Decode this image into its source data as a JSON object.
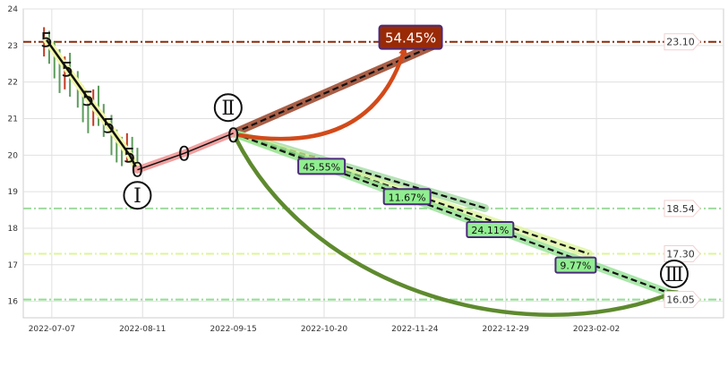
{
  "chart_data": {
    "type": "candlestick",
    "title": "",
    "xlabel": "",
    "ylabel": "",
    "x_range": [
      "2022-06-26",
      "2023-03-23"
    ],
    "ylim": [
      15.55,
      24.0
    ],
    "grid": true,
    "x_tick_labels": [
      "2022-07-07",
      "2022-08-11",
      "2022-09-15",
      "2022-10-20",
      "2022-11-24",
      "2022-12-29",
      "2023-02-02"
    ],
    "y_ticks": [
      16,
      17,
      18,
      19,
      20,
      21,
      22,
      23,
      24
    ],
    "candles": [
      {
        "date": "2022-07-04",
        "open": 22.9,
        "close": 23.2,
        "high": 23.5,
        "low": 22.7
      },
      {
        "date": "2022-07-06",
        "open": 23.1,
        "close": 22.8,
        "high": 23.4,
        "low": 22.5
      },
      {
        "date": "2022-07-08",
        "open": 22.8,
        "close": 22.5,
        "high": 23.1,
        "low": 22.1
      },
      {
        "date": "2022-07-10",
        "open": 22.5,
        "close": 22.1,
        "high": 22.9,
        "low": 21.7
      },
      {
        "date": "2022-07-12",
        "open": 22.1,
        "close": 22.4,
        "high": 22.7,
        "low": 21.8
      },
      {
        "date": "2022-07-14",
        "open": 22.4,
        "close": 22.0,
        "high": 22.8,
        "low": 21.6
      },
      {
        "date": "2022-07-17",
        "open": 22.0,
        "close": 21.6,
        "high": 22.3,
        "low": 21.3
      },
      {
        "date": "2022-07-19",
        "open": 21.6,
        "close": 21.2,
        "high": 21.9,
        "low": 20.9
      },
      {
        "date": "2022-07-21",
        "open": 21.2,
        "close": 21.0,
        "high": 21.5,
        "low": 20.6
      },
      {
        "date": "2022-07-23",
        "open": 21.0,
        "close": 21.4,
        "high": 21.8,
        "low": 20.8
      },
      {
        "date": "2022-07-25",
        "open": 21.4,
        "close": 21.1,
        "high": 21.9,
        "low": 20.8
      },
      {
        "date": "2022-07-27",
        "open": 21.1,
        "close": 20.8,
        "high": 21.4,
        "low": 20.5
      },
      {
        "date": "2022-07-30",
        "open": 20.8,
        "close": 20.4,
        "high": 21.1,
        "low": 20.0
      },
      {
        "date": "2022-08-01",
        "open": 20.4,
        "close": 20.1,
        "high": 20.7,
        "low": 19.8
      },
      {
        "date": "2022-08-03",
        "open": 20.1,
        "close": 19.9,
        "high": 20.5,
        "low": 19.7
      },
      {
        "date": "2022-08-05",
        "open": 19.9,
        "close": 20.2,
        "high": 20.6,
        "low": 19.8
      },
      {
        "date": "2022-08-07",
        "open": 20.2,
        "close": 19.9,
        "high": 20.5,
        "low": 19.7
      },
      {
        "date": "2022-08-09",
        "open": 19.9,
        "close": 19.7,
        "high": 20.2,
        "low": 19.5
      }
    ],
    "wave_path": [
      {
        "date": "2022-07-05",
        "value": 23.15
      },
      {
        "date": "2022-07-13",
        "value": 22.35
      },
      {
        "date": "2022-07-21",
        "value": 21.55
      },
      {
        "date": "2022-07-29",
        "value": 20.8
      },
      {
        "date": "2022-08-06",
        "value": 20.0
      },
      {
        "date": "2022-08-09",
        "value": 19.6
      }
    ],
    "wave_marks": [
      {
        "date": "2022-07-05",
        "value": 23.15,
        "label": "5"
      },
      {
        "date": "2022-07-13",
        "value": 22.35,
        "label": "5"
      },
      {
        "date": "2022-07-21",
        "value": 21.55,
        "label": "5"
      },
      {
        "date": "2022-07-29",
        "value": 20.8,
        "label": "5"
      },
      {
        "date": "2022-08-06",
        "value": 20.0,
        "label": "5"
      },
      {
        "date": "2022-08-09",
        "value": 19.6,
        "label": "0"
      },
      {
        "date": "2022-08-27",
        "value": 20.05,
        "label": "0"
      },
      {
        "date": "2022-09-15",
        "value": 20.55,
        "label": "0"
      }
    ],
    "rise_path": [
      {
        "date": "2022-08-09",
        "value": 19.6
      },
      {
        "date": "2022-08-27",
        "value": 20.05
      },
      {
        "date": "2022-09-15",
        "value": 20.6
      }
    ],
    "wave_labels": [
      {
        "date": "2022-08-09",
        "value": 18.9,
        "label": "Ⅰ"
      },
      {
        "date": "2022-09-13",
        "value": 21.3,
        "label": "Ⅱ"
      },
      {
        "date": "2023-03-04",
        "value": 16.75,
        "label": "Ⅲ"
      }
    ],
    "levels": [
      {
        "value": 23.1,
        "label": "23.10",
        "color": "#8B2A0A",
        "style": "dashdot"
      },
      {
        "value": 18.54,
        "label": "18.54",
        "color": "#9ED99E",
        "style": "dashdot"
      },
      {
        "value": 17.3,
        "label": "17.30",
        "color": "#DDF59A",
        "style": "dashdot"
      },
      {
        "value": 16.05,
        "label": "16.05",
        "color": "#8EE08E",
        "style": "dashdot"
      }
    ],
    "projections": [
      {
        "from": {
          "date": "2022-09-15",
          "value": 20.6
        },
        "to": {
          "date": "2022-12-03",
          "value": 23.05
        },
        "color": "#8B2A0A"
      },
      {
        "from": {
          "date": "2022-09-15",
          "value": 20.6
        },
        "to": {
          "date": "2022-12-21",
          "value": 18.55
        },
        "color": "#9ED99E"
      },
      {
        "from": {
          "date": "2022-09-15",
          "value": 20.6
        },
        "to": {
          "date": "2023-01-30",
          "value": 17.3
        },
        "color": "#DDF59A"
      },
      {
        "from": {
          "date": "2022-09-15",
          "value": 20.6
        },
        "to": {
          "date": "2023-03-03",
          "value": 16.2
        },
        "color": "#8EE08E"
      }
    ],
    "percent_labels": [
      {
        "label": "54.45%",
        "date": "2022-11-22",
        "value": 23.2,
        "style": "big"
      },
      {
        "label": "45.55%",
        "date": "2022-10-19",
        "value": 19.68,
        "style": "small"
      },
      {
        "label": "11.67%",
        "date": "2022-11-21",
        "value": 18.85,
        "style": "small"
      },
      {
        "label": "24.11%",
        "date": "2022-12-23",
        "value": 17.95,
        "style": "small"
      },
      {
        "label": "9.77%",
        "date": "2023-01-25",
        "value": 16.98,
        "style": "small"
      }
    ],
    "curved_arrows": [
      {
        "from": {
          "date": "2022-09-17",
          "value": 20.55
        },
        "to": {
          "date": "2022-11-20",
          "value": 22.9
        },
        "color": "#D24A1A"
      },
      {
        "from": {
          "date": "2022-09-16",
          "value": 20.45
        },
        "to": {
          "date": "2023-03-04",
          "value": 16.25
        },
        "color": "#5E8A2E"
      }
    ]
  }
}
